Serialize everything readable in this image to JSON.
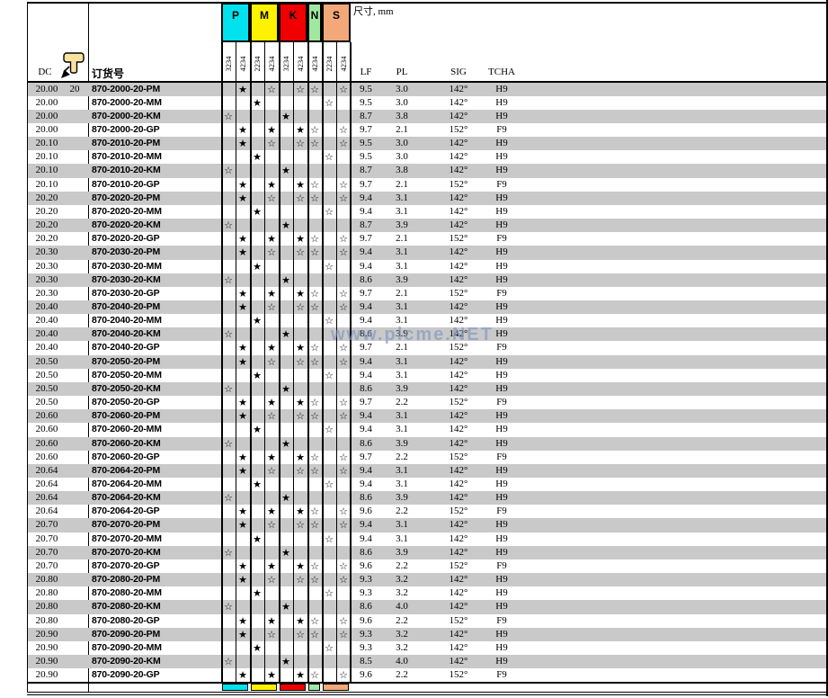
{
  "header": {
    "unit_label": "尺寸, mm",
    "dc_label": "DC",
    "qty_label": "20",
    "order_label": "订货号",
    "pointer_icon": "hand-pin-cursor-icon",
    "groups": [
      {
        "letter": "P",
        "color": "#00E2EE",
        "grades": [
          "3234",
          "4234"
        ]
      },
      {
        "letter": "M",
        "color": "#FFF200",
        "grades": [
          "2234",
          "4234"
        ]
      },
      {
        "letter": "K",
        "color": "#F00000",
        "grades": [
          "3234",
          "4234"
        ]
      },
      {
        "letter": "N",
        "color": "#A0E8A0",
        "grades": [
          "4234"
        ]
      },
      {
        "letter": "S",
        "color": "#F2A878",
        "grades": [
          "2234",
          "4234"
        ]
      }
    ],
    "dim_columns": [
      "LF",
      "PL",
      "SIG",
      "TCHA"
    ]
  },
  "star_patterns": {
    "PM": [
      "",
      "★",
      "",
      "☆",
      "",
      "☆",
      "☆",
      "",
      "☆"
    ],
    "MM": [
      "",
      "",
      "★",
      "",
      "",
      "",
      "",
      "☆",
      ""
    ],
    "KM": [
      "☆",
      "",
      "",
      "",
      "★",
      "",
      "",
      "",
      ""
    ],
    "GP": [
      "",
      "★",
      "",
      "★",
      "",
      "★",
      "☆",
      "",
      "☆"
    ]
  },
  "watermark": "www.plcme.NET",
  "stripe_color": "#C9C9C9",
  "rows": [
    {
      "dc": "20.00",
      "qty": "20",
      "order": "870-2000-20-PM",
      "type": "PM",
      "lf": "9.5",
      "pl": "3.0",
      "sig": "142°",
      "tcha": "H9"
    },
    {
      "dc": "20.00",
      "qty": "",
      "order": "870-2000-20-MM",
      "type": "MM",
      "lf": "9.5",
      "pl": "3.0",
      "sig": "142°",
      "tcha": "H9"
    },
    {
      "dc": "20.00",
      "qty": "",
      "order": "870-2000-20-KM",
      "type": "KM",
      "lf": "8.7",
      "pl": "3.8",
      "sig": "142°",
      "tcha": "H9"
    },
    {
      "dc": "20.00",
      "qty": "",
      "order": "870-2000-20-GP",
      "type": "GP",
      "lf": "9.7",
      "pl": "2.1",
      "sig": "152°",
      "tcha": "F9"
    },
    {
      "dc": "20.10",
      "qty": "",
      "order": "870-2010-20-PM",
      "type": "PM",
      "lf": "9.5",
      "pl": "3.0",
      "sig": "142°",
      "tcha": "H9"
    },
    {
      "dc": "20.10",
      "qty": "",
      "order": "870-2010-20-MM",
      "type": "MM",
      "lf": "9.5",
      "pl": "3.0",
      "sig": "142°",
      "tcha": "H9"
    },
    {
      "dc": "20.10",
      "qty": "",
      "order": "870-2010-20-KM",
      "type": "KM",
      "lf": "8.7",
      "pl": "3.8",
      "sig": "142°",
      "tcha": "H9"
    },
    {
      "dc": "20.10",
      "qty": "",
      "order": "870-2010-20-GP",
      "type": "GP",
      "lf": "9.7",
      "pl": "2.1",
      "sig": "152°",
      "tcha": "F9"
    },
    {
      "dc": "20.20",
      "qty": "",
      "order": "870-2020-20-PM",
      "type": "PM",
      "lf": "9.4",
      "pl": "3.1",
      "sig": "142°",
      "tcha": "H9"
    },
    {
      "dc": "20.20",
      "qty": "",
      "order": "870-2020-20-MM",
      "type": "MM",
      "lf": "9.4",
      "pl": "3.1",
      "sig": "142°",
      "tcha": "H9"
    },
    {
      "dc": "20.20",
      "qty": "",
      "order": "870-2020-20-KM",
      "type": "KM",
      "lf": "8.7",
      "pl": "3.9",
      "sig": "142°",
      "tcha": "H9"
    },
    {
      "dc": "20.20",
      "qty": "",
      "order": "870-2020-20-GP",
      "type": "GP",
      "lf": "9.7",
      "pl": "2.1",
      "sig": "152°",
      "tcha": "F9"
    },
    {
      "dc": "20.30",
      "qty": "",
      "order": "870-2030-20-PM",
      "type": "PM",
      "lf": "9.4",
      "pl": "3.1",
      "sig": "142°",
      "tcha": "H9"
    },
    {
      "dc": "20.30",
      "qty": "",
      "order": "870-2030-20-MM",
      "type": "MM",
      "lf": "9.4",
      "pl": "3.1",
      "sig": "142°",
      "tcha": "H9"
    },
    {
      "dc": "20.30",
      "qty": "",
      "order": "870-2030-20-KM",
      "type": "KM",
      "lf": "8.6",
      "pl": "3.9",
      "sig": "142°",
      "tcha": "H9"
    },
    {
      "dc": "20.30",
      "qty": "",
      "order": "870-2030-20-GP",
      "type": "GP",
      "lf": "9.7",
      "pl": "2.1",
      "sig": "152°",
      "tcha": "F9"
    },
    {
      "dc": "20.40",
      "qty": "",
      "order": "870-2040-20-PM",
      "type": "PM",
      "lf": "9.4",
      "pl": "3.1",
      "sig": "142°",
      "tcha": "H9"
    },
    {
      "dc": "20.40",
      "qty": "",
      "order": "870-2040-20-MM",
      "type": "MM",
      "lf": "9.4",
      "pl": "3.1",
      "sig": "142°",
      "tcha": "H9"
    },
    {
      "dc": "20.40",
      "qty": "",
      "order": "870-2040-20-KM",
      "type": "KM",
      "lf": "8.6",
      "pl": "3.9",
      "sig": "142°",
      "tcha": "H9"
    },
    {
      "dc": "20.40",
      "qty": "",
      "order": "870-2040-20-GP",
      "type": "GP",
      "lf": "9.7",
      "pl": "2.1",
      "sig": "152°",
      "tcha": "F9"
    },
    {
      "dc": "20.50",
      "qty": "",
      "order": "870-2050-20-PM",
      "type": "PM",
      "lf": "9.4",
      "pl": "3.1",
      "sig": "142°",
      "tcha": "H9"
    },
    {
      "dc": "20.50",
      "qty": "",
      "order": "870-2050-20-MM",
      "type": "MM",
      "lf": "9.4",
      "pl": "3.1",
      "sig": "142°",
      "tcha": "H9"
    },
    {
      "dc": "20.50",
      "qty": "",
      "order": "870-2050-20-KM",
      "type": "KM",
      "lf": "8.6",
      "pl": "3.9",
      "sig": "142°",
      "tcha": "H9"
    },
    {
      "dc": "20.50",
      "qty": "",
      "order": "870-2050-20-GP",
      "type": "GP",
      "lf": "9.7",
      "pl": "2.2",
      "sig": "152°",
      "tcha": "F9"
    },
    {
      "dc": "20.60",
      "qty": "",
      "order": "870-2060-20-PM",
      "type": "PM",
      "lf": "9.4",
      "pl": "3.1",
      "sig": "142°",
      "tcha": "H9"
    },
    {
      "dc": "20.60",
      "qty": "",
      "order": "870-2060-20-MM",
      "type": "MM",
      "lf": "9.4",
      "pl": "3.1",
      "sig": "142°",
      "tcha": "H9"
    },
    {
      "dc": "20.60",
      "qty": "",
      "order": "870-2060-20-KM",
      "type": "KM",
      "lf": "8.6",
      "pl": "3.9",
      "sig": "142°",
      "tcha": "H9"
    },
    {
      "dc": "20.60",
      "qty": "",
      "order": "870-2060-20-GP",
      "type": "GP",
      "lf": "9.7",
      "pl": "2.2",
      "sig": "152°",
      "tcha": "F9"
    },
    {
      "dc": "20.64",
      "qty": "",
      "order": "870-2064-20-PM",
      "type": "PM",
      "lf": "9.4",
      "pl": "3.1",
      "sig": "142°",
      "tcha": "H9"
    },
    {
      "dc": "20.64",
      "qty": "",
      "order": "870-2064-20-MM",
      "type": "MM",
      "lf": "9.4",
      "pl": "3.1",
      "sig": "142°",
      "tcha": "H9"
    },
    {
      "dc": "20.64",
      "qty": "",
      "order": "870-2064-20-KM",
      "type": "KM",
      "lf": "8.6",
      "pl": "3.9",
      "sig": "142°",
      "tcha": "H9"
    },
    {
      "dc": "20.64",
      "qty": "",
      "order": "870-2064-20-GP",
      "type": "GP",
      "lf": "9.6",
      "pl": "2.2",
      "sig": "152°",
      "tcha": "F9"
    },
    {
      "dc": "20.70",
      "qty": "",
      "order": "870-2070-20-PM",
      "type": "PM",
      "lf": "9.4",
      "pl": "3.1",
      "sig": "142°",
      "tcha": "H9"
    },
    {
      "dc": "20.70",
      "qty": "",
      "order": "870-2070-20-MM",
      "type": "MM",
      "lf": "9.4",
      "pl": "3.1",
      "sig": "142°",
      "tcha": "H9"
    },
    {
      "dc": "20.70",
      "qty": "",
      "order": "870-2070-20-KM",
      "type": "KM",
      "lf": "8.6",
      "pl": "3.9",
      "sig": "142°",
      "tcha": "H9"
    },
    {
      "dc": "20.70",
      "qty": "",
      "order": "870-2070-20-GP",
      "type": "GP",
      "lf": "9.6",
      "pl": "2.2",
      "sig": "152°",
      "tcha": "F9"
    },
    {
      "dc": "20.80",
      "qty": "",
      "order": "870-2080-20-PM",
      "type": "PM",
      "lf": "9.3",
      "pl": "3.2",
      "sig": "142°",
      "tcha": "H9"
    },
    {
      "dc": "20.80",
      "qty": "",
      "order": "870-2080-20-MM",
      "type": "MM",
      "lf": "9.3",
      "pl": "3.2",
      "sig": "142°",
      "tcha": "H9"
    },
    {
      "dc": "20.80",
      "qty": "",
      "order": "870-2080-20-KM",
      "type": "KM",
      "lf": "8.6",
      "pl": "4.0",
      "sig": "142°",
      "tcha": "H9"
    },
    {
      "dc": "20.80",
      "qty": "",
      "order": "870-2080-20-GP",
      "type": "GP",
      "lf": "9.6",
      "pl": "2.2",
      "sig": "152°",
      "tcha": "F9"
    },
    {
      "dc": "20.90",
      "qty": "",
      "order": "870-2090-20-PM",
      "type": "PM",
      "lf": "9.3",
      "pl": "3.2",
      "sig": "142°",
      "tcha": "H9"
    },
    {
      "dc": "20.90",
      "qty": "",
      "order": "870-2090-20-MM",
      "type": "MM",
      "lf": "9.3",
      "pl": "3.2",
      "sig": "142°",
      "tcha": "H9"
    },
    {
      "dc": "20.90",
      "qty": "",
      "order": "870-2090-20-KM",
      "type": "KM",
      "lf": "8.5",
      "pl": "4.0",
      "sig": "142°",
      "tcha": "H9"
    },
    {
      "dc": "20.90",
      "qty": "",
      "order": "870-2090-20-GP",
      "type": "GP",
      "lf": "9.6",
      "pl": "2.2",
      "sig": "152°",
      "tcha": "F9"
    }
  ]
}
